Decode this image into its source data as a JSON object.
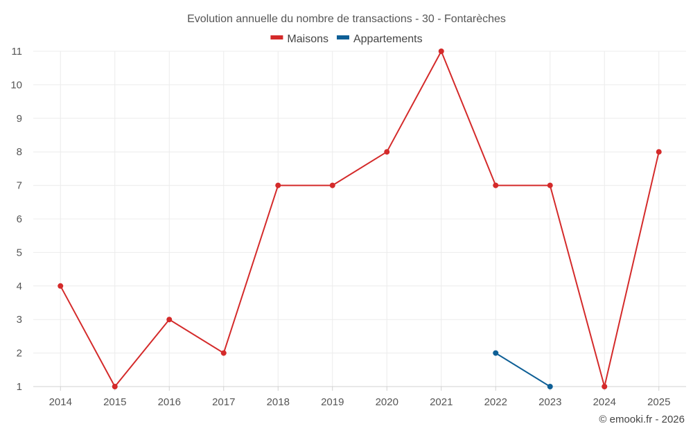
{
  "chart_data": {
    "type": "line",
    "title": "Evolution annuelle du nombre de transactions - 30 - Fontarèches",
    "categories": [
      "2014",
      "2015",
      "2016",
      "2017",
      "2018",
      "2019",
      "2020",
      "2021",
      "2022",
      "2023",
      "2024",
      "2025"
    ],
    "ylim": [
      1,
      11
    ],
    "yticks": [
      1,
      2,
      3,
      4,
      5,
      6,
      7,
      8,
      9,
      10,
      11
    ],
    "grid": true,
    "legend_position": "top-center",
    "series": [
      {
        "name": "Maisons",
        "color": "#d42a2a",
        "values": [
          4,
          1,
          3,
          2,
          7,
          7,
          8,
          11,
          7,
          7,
          1,
          8
        ]
      },
      {
        "name": "Appartements",
        "color": "#0e5f96",
        "values": [
          null,
          null,
          null,
          null,
          null,
          null,
          null,
          null,
          2,
          1,
          null,
          null
        ]
      }
    ]
  },
  "credit": "© emooki.fr - 2026"
}
